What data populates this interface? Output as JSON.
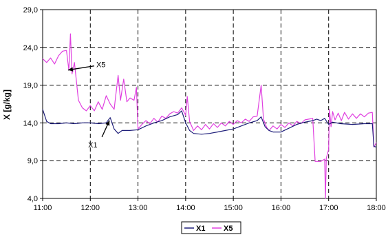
{
  "chart_data": {
    "type": "line",
    "title": "",
    "xlabel": "",
    "ylabel": "X [g/kg]",
    "x_ticks": [
      "11:00",
      "12:00",
      "13:00",
      "14:00",
      "15:00",
      "16:00",
      "17:00",
      "18:00"
    ],
    "y_ticks": [
      "4,0",
      "9,0",
      "14,0",
      "19,0",
      "24,0",
      "29,0"
    ],
    "xlim": [
      "11:00",
      "18:00"
    ],
    "ylim": [
      4,
      29
    ],
    "grid": "dashed vertical and horizontal at major ticks",
    "legend_position": "bottom-center",
    "series": [
      {
        "name": "X1",
        "color": "#1f1f7a",
        "points": [
          [
            "11:00",
            15.8
          ],
          [
            "11:05",
            14.2
          ],
          [
            "11:10",
            13.9
          ],
          [
            "11:20",
            13.9
          ],
          [
            "11:30",
            14.0
          ],
          [
            "11:40",
            13.9
          ],
          [
            "11:50",
            14.0
          ],
          [
            "12:00",
            14.0
          ],
          [
            "12:10",
            13.9
          ],
          [
            "12:20",
            14.0
          ],
          [
            "12:25",
            14.7
          ],
          [
            "12:30",
            13.2
          ],
          [
            "12:35",
            12.6
          ],
          [
            "12:40",
            13.0
          ],
          [
            "12:50",
            13.0
          ],
          [
            "13:00",
            13.1
          ],
          [
            "13:10",
            13.6
          ],
          [
            "13:20",
            14.0
          ],
          [
            "13:30",
            14.3
          ],
          [
            "13:40",
            14.8
          ],
          [
            "13:50",
            15.1
          ],
          [
            "13:55",
            15.6
          ],
          [
            "14:00",
            14.0
          ],
          [
            "14:05",
            13.0
          ],
          [
            "14:10",
            12.6
          ],
          [
            "14:20",
            12.5
          ],
          [
            "14:30",
            12.6
          ],
          [
            "14:40",
            12.8
          ],
          [
            "14:50",
            13.0
          ],
          [
            "15:00",
            13.2
          ],
          [
            "15:10",
            13.6
          ],
          [
            "15:20",
            14.0
          ],
          [
            "15:30",
            14.3
          ],
          [
            "15:35",
            14.8
          ],
          [
            "15:40",
            13.5
          ],
          [
            "15:45",
            13.0
          ],
          [
            "15:50",
            12.8
          ],
          [
            "16:00",
            12.8
          ],
          [
            "16:10",
            13.3
          ],
          [
            "16:20",
            13.8
          ],
          [
            "16:30",
            14.1
          ],
          [
            "16:40",
            14.3
          ],
          [
            "16:45",
            14.5
          ],
          [
            "16:50",
            14.3
          ],
          [
            "16:55",
            14.6
          ],
          [
            "17:00",
            13.8
          ],
          [
            "17:05",
            14.1
          ],
          [
            "17:15",
            13.9
          ],
          [
            "17:30",
            13.8
          ],
          [
            "17:45",
            13.9
          ],
          [
            "17:55",
            13.9
          ],
          [
            "17:57",
            10.9
          ],
          [
            "18:00",
            10.8
          ]
        ]
      },
      {
        "name": "X5",
        "color": "#e040e0",
        "points": [
          [
            "11:00",
            22.5
          ],
          [
            "11:05",
            22.0
          ],
          [
            "11:10",
            22.6
          ],
          [
            "11:15",
            21.8
          ],
          [
            "11:20",
            22.9
          ],
          [
            "11:25",
            23.5
          ],
          [
            "11:30",
            23.6
          ],
          [
            "11:33",
            21.0
          ],
          [
            "11:35",
            25.8
          ],
          [
            "11:37",
            20.5
          ],
          [
            "11:40",
            22.0
          ],
          [
            "11:45",
            17.0
          ],
          [
            "11:50",
            16.0
          ],
          [
            "11:55",
            15.6
          ],
          [
            "12:00",
            16.3
          ],
          [
            "12:05",
            15.6
          ],
          [
            "12:10",
            16.8
          ],
          [
            "12:15",
            15.8
          ],
          [
            "12:20",
            17.6
          ],
          [
            "12:25",
            16.5
          ],
          [
            "12:30",
            15.8
          ],
          [
            "12:35",
            20.3
          ],
          [
            "12:38",
            17.0
          ],
          [
            "12:42",
            19.8
          ],
          [
            "12:46",
            16.8
          ],
          [
            "12:50",
            17.3
          ],
          [
            "12:55",
            17.0
          ],
          [
            "12:58",
            18.7
          ],
          [
            "13:00",
            13.2
          ],
          [
            "13:05",
            13.8
          ],
          [
            "13:10",
            14.3
          ],
          [
            "13:15",
            13.9
          ],
          [
            "13:20",
            14.6
          ],
          [
            "13:25",
            14.1
          ],
          [
            "13:30",
            14.9
          ],
          [
            "13:35",
            14.6
          ],
          [
            "13:40",
            15.2
          ],
          [
            "13:45",
            15.5
          ],
          [
            "13:50",
            15.3
          ],
          [
            "13:55",
            16.0
          ],
          [
            "14:00",
            15.0
          ],
          [
            "14:02",
            17.5
          ],
          [
            "14:05",
            14.2
          ],
          [
            "14:10",
            13.0
          ],
          [
            "14:15",
            13.6
          ],
          [
            "14:20",
            13.1
          ],
          [
            "14:25",
            13.8
          ],
          [
            "14:30",
            13.2
          ],
          [
            "14:35",
            13.9
          ],
          [
            "14:40",
            13.4
          ],
          [
            "14:45",
            14.0
          ],
          [
            "14:50",
            13.6
          ],
          [
            "14:55",
            14.2
          ],
          [
            "15:00",
            13.8
          ],
          [
            "15:05",
            14.3
          ],
          [
            "15:10",
            14.0
          ],
          [
            "15:15",
            14.5
          ],
          [
            "15:20",
            14.2
          ],
          [
            "15:25",
            14.8
          ],
          [
            "15:30",
            14.9
          ],
          [
            "15:35",
            19.0
          ],
          [
            "15:38",
            14.5
          ],
          [
            "15:42",
            13.4
          ],
          [
            "15:45",
            13.0
          ],
          [
            "15:50",
            13.6
          ],
          [
            "15:55",
            13.2
          ],
          [
            "16:00",
            13.8
          ],
          [
            "16:05",
            13.4
          ],
          [
            "16:10",
            14.0
          ],
          [
            "16:15",
            13.6
          ],
          [
            "16:20",
            14.2
          ],
          [
            "16:25",
            13.9
          ],
          [
            "16:30",
            14.4
          ],
          [
            "16:35",
            14.5
          ],
          [
            "16:40",
            14.6
          ],
          [
            "16:43",
            8.9
          ],
          [
            "16:50",
            8.9
          ],
          [
            "16:55",
            9.2
          ],
          [
            "16:56",
            4.0
          ],
          [
            "16:57",
            9.3
          ],
          [
            "17:00",
            10.5
          ],
          [
            "17:01",
            15.8
          ],
          [
            "17:03",
            13.5
          ],
          [
            "17:05",
            15.5
          ],
          [
            "17:08",
            14.4
          ],
          [
            "17:12",
            15.3
          ],
          [
            "17:16",
            14.3
          ],
          [
            "17:20",
            15.4
          ],
          [
            "17:25",
            14.5
          ],
          [
            "17:30",
            15.2
          ],
          [
            "17:35",
            14.6
          ],
          [
            "17:40",
            15.2
          ],
          [
            "17:45",
            14.8
          ],
          [
            "17:50",
            15.3
          ],
          [
            "17:55",
            15.4
          ],
          [
            "17:57",
            10.8
          ],
          [
            "18:00",
            11.4
          ]
        ]
      }
    ],
    "annotations": [
      {
        "text": "X5",
        "points_to": [
          "11:32",
          21.0
        ]
      },
      {
        "text": "X1",
        "points_to": [
          "12:25",
          14.5
        ]
      }
    ]
  }
}
